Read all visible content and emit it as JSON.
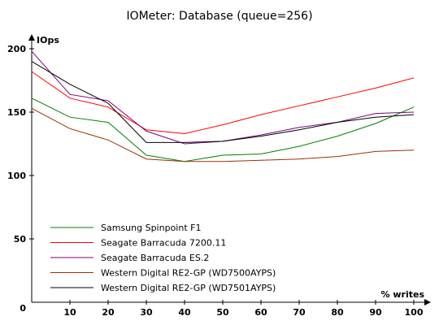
{
  "chart_data": {
    "type": "line",
    "title": "IOMeter: Database (queue=256)",
    "ylabel": "IOps",
    "xlabel": "% writes",
    "x": [
      0,
      10,
      20,
      30,
      40,
      50,
      60,
      70,
      80,
      90,
      100
    ],
    "xlim": [
      0,
      100
    ],
    "ylim": [
      0,
      200
    ],
    "xticks": [
      0,
      10,
      20,
      30,
      40,
      50,
      60,
      70,
      80,
      90,
      100
    ],
    "yticks": [
      0,
      50,
      100,
      150,
      200
    ],
    "grid": false,
    "legend_position": "bottom-left",
    "series": [
      {
        "name": "Samsung Spinpoint F1",
        "color": "#008000",
        "values": [
          161,
          146,
          142,
          116,
          111,
          116,
          117,
          123,
          131,
          141,
          154
        ]
      },
      {
        "name": "Seagate Barracuda 7200.11",
        "color": "#ff0000",
        "values": [
          182,
          161,
          154,
          136,
          133,
          140,
          148,
          155,
          162,
          169,
          177
        ]
      },
      {
        "name": "Seagate Barracuda ES.2",
        "color": "#800080",
        "values": [
          198,
          164,
          159,
          135,
          125,
          127,
          132,
          138,
          142,
          149,
          150
        ]
      },
      {
        "name": "Western Digital RE2-GP (WD7500AYPS)",
        "color": "#993300",
        "values": [
          153,
          137,
          128,
          113,
          111,
          111,
          112,
          113,
          115,
          119,
          120
        ]
      },
      {
        "name": "Western Digital RE2-GP (WD7501AYPS)",
        "color": "#000000",
        "values": [
          190,
          172,
          157,
          126,
          126,
          127,
          131,
          136,
          142,
          146,
          148
        ]
      }
    ]
  }
}
